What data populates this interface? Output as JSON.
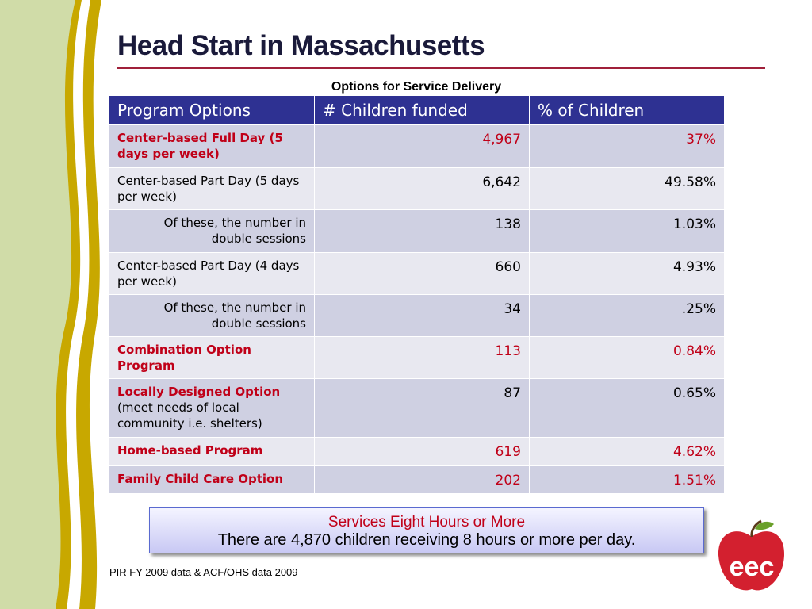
{
  "header": {
    "title": "Head Start in Massachusetts",
    "subtitle": "Options for Service Delivery"
  },
  "table": {
    "columns": [
      "Program Options",
      "# Children funded",
      "% of Children"
    ],
    "rows": [
      {
        "option": "Center-based Full Day (5 days per week)",
        "children": "4,967",
        "percent": "37%"
      },
      {
        "option": "Center-based Part Day (5 days per week)",
        "children": "6,642",
        "percent": "49.58%"
      },
      {
        "option": "Of these, the number in double sessions",
        "children": "138",
        "percent": "1.03%"
      },
      {
        "option": "Center-based Part Day (4 days per week)",
        "children": "660",
        "percent": "4.93%"
      },
      {
        "option": "Of these, the number in double sessions",
        "children": "34",
        "percent": ".25%"
      },
      {
        "option": "Combination Option Program",
        "children": "113",
        "percent": "0.84%"
      },
      {
        "option": "Locally Designed Option",
        "note": "(meet needs of local community i.e. shelters)",
        "children": "87",
        "percent": "0.65%"
      },
      {
        "option": "Home-based Program",
        "children": "619",
        "percent": "4.62%"
      },
      {
        "option": "Family Child Care Option",
        "children": "202",
        "percent": "1.51%"
      }
    ]
  },
  "callout": {
    "heading": "Services Eight Hours or More",
    "text": "There are 4,870 children receiving 8 hours or more per day."
  },
  "footer": {
    "source": "PIR FY 2009 data & ACF/OHS data 2009",
    "logo": "eec"
  }
}
